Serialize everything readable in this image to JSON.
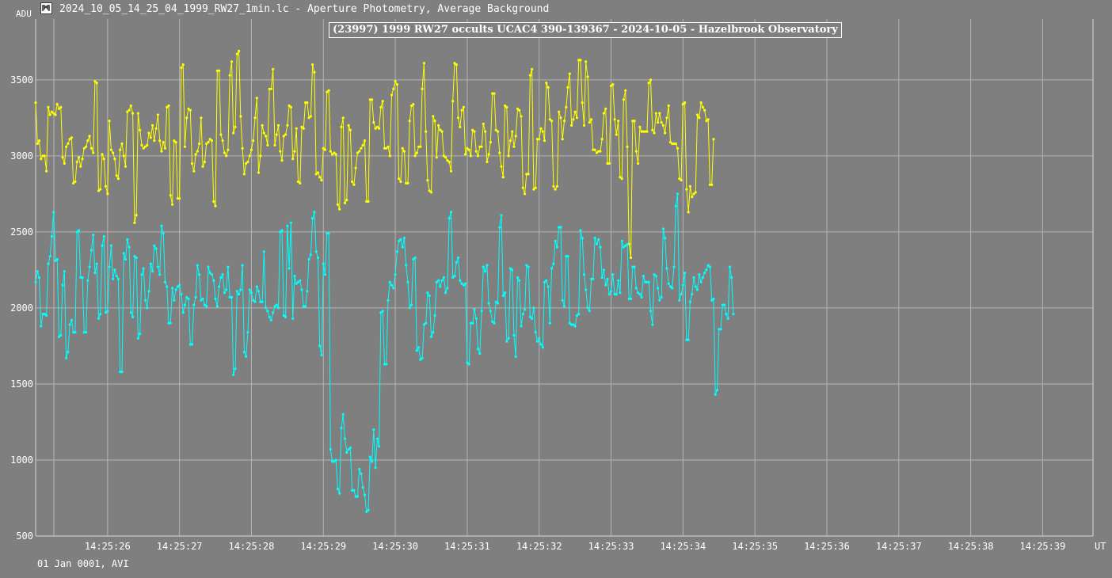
{
  "window": {
    "title": "2024_10_05_14_25_04_1999_RW27_1min.lc - Aperture Photometry, Average Background",
    "icon": "lightcurve-app-icon"
  },
  "footer": {
    "date_text": "01 Jan 0001, AVI"
  },
  "colors": {
    "background": "#7f7f7f",
    "grid": "#b4b4b4",
    "comparison_series": "#ffff00",
    "target_series": "#00ffff"
  },
  "chart_data": {
    "type": "line",
    "title": "(23997) 1999 RW27 occults UCAC4 390-139367 - 2024-10-05 - Hazelbrook Observatory",
    "ylabel": "ADU",
    "xlabel": "UT",
    "ylim": [
      500,
      3900
    ],
    "xlim": [
      0,
      147
    ],
    "yticks": [
      500,
      1000,
      1500,
      2000,
      2500,
      3000,
      3500
    ],
    "xticks": [
      {
        "x": 10,
        "label": "14:25:26"
      },
      {
        "x": 20,
        "label": "14:25:27"
      },
      {
        "x": 30,
        "label": "14:25:28"
      },
      {
        "x": 40,
        "label": "14:25:29"
      },
      {
        "x": 50,
        "label": "14:25:30"
      },
      {
        "x": 60,
        "label": "14:25:31"
      },
      {
        "x": 70,
        "label": "14:25:32"
      },
      {
        "x": 80,
        "label": "14:25:33"
      },
      {
        "x": 90,
        "label": "14:25:34"
      },
      {
        "x": 100,
        "label": "14:25:35"
      },
      {
        "x": 110,
        "label": "14:25:36"
      },
      {
        "x": 120,
        "label": "14:25:37"
      },
      {
        "x": 130,
        "label": "14:25:38"
      },
      {
        "x": 140,
        "label": "14:25:39"
      }
    ],
    "grid": true,
    "x_start": 0,
    "x_step": 0.25,
    "series": [
      {
        "color": "#ffff00",
        "values": [
          3350,
          3080,
          3100,
          2980,
          3000,
          3000,
          2900,
          3320,
          3270,
          3290,
          3280,
          3270,
          3340,
          3310,
          3320,
          2990,
          2950,
          3060,
          3080,
          3110,
          3120,
          2820,
          2830,
          2960,
          2990,
          2930,
          2980,
          3050,
          3060,
          3100,
          3130,
          3050,
          3020,
          3490,
          3480,
          2770,
          2780,
          3010,
          2980,
          2800,
          2750,
          3230,
          3040,
          3020,
          2980,
          2870,
          2850,
          3040,
          3080,
          3000,
          2930,
          3290,
          3300,
          3330,
          3280,
          2560,
          2610,
          3280,
          3170,
          3070,
          3050,
          3060,
          3070,
          3150,
          3120,
          3200,
          3100,
          3180,
          3270,
          3100,
          3030,
          3090,
          3050,
          3320,
          3330,
          2740,
          2680,
          3100,
          3090,
          2720,
          2720,
          3580,
          3600,
          3060,
          3250,
          3310,
          3300,
          2950,
          2900,
          3010,
          3030,
          3080,
          3250,
          2930,
          2960,
          3080,
          3090,
          3110,
          3100,
          2700,
          2670,
          3560,
          3560,
          3140,
          3100,
          3020,
          3000,
          3040,
          3530,
          3620,
          3150,
          3190,
          3670,
          3690,
          3260,
          3050,
          2880,
          2950,
          2960,
          3000,
          3040,
          3100,
          3250,
          3380,
          2890,
          3000,
          3200,
          3150,
          3130,
          3070,
          3440,
          3440,
          3570,
          3070,
          3140,
          3200,
          3030,
          2970,
          3130,
          3140,
          3200,
          3330,
          3320,
          2980,
          3030,
          3180,
          2830,
          2820,
          3190,
          3180,
          3350,
          3350,
          3250,
          3260,
          3600,
          3550,
          2880,
          2890,
          2860,
          2840,
          3050,
          3040,
          3420,
          3430,
          3030,
          3010,
          3020,
          3010,
          2680,
          2650,
          3190,
          3250,
          2690,
          2710,
          3200,
          3170,
          2830,
          2810,
          2920,
          3020,
          3030,
          3050,
          3070,
          3100,
          2700,
          2700,
          3370,
          3370,
          3220,
          3180,
          3190,
          3180,
          3320,
          3360,
          3050,
          3050,
          3060,
          3000,
          3400,
          3440,
          3490,
          3470,
          2850,
          2830,
          3050,
          3030,
          2820,
          2820,
          3230,
          3330,
          3340,
          3000,
          3020,
          3060,
          3060,
          3440,
          3610,
          3160,
          2840,
          2770,
          2760,
          3260,
          3230,
          2990,
          3200,
          3170,
          3160,
          3000,
          2990,
          2970,
          2960,
          2900,
          3360,
          3610,
          3600,
          3250,
          3190,
          3300,
          3320,
          3010,
          3050,
          3040,
          3000,
          3170,
          3160,
          3030,
          3000,
          3060,
          3060,
          3210,
          3160,
          2960,
          3010,
          3090,
          3410,
          3410,
          3170,
          3160,
          3020,
          2930,
          2860,
          3330,
          3320,
          3000,
          3100,
          3160,
          3060,
          3130,
          3310,
          3300,
          3260,
          2790,
          2750,
          2880,
          2880,
          3530,
          3570,
          2780,
          2790,
          3110,
          3110,
          3180,
          3160,
          3100,
          3480,
          3450,
          3240,
          3230,
          2800,
          2780,
          2800,
          3290,
          3250,
          3110,
          3230,
          3320,
          3450,
          3540,
          3200,
          3240,
          3290,
          3250,
          3630,
          3630,
          3350,
          3200,
          3620,
          3520,
          3220,
          3240,
          3040,
          3040,
          3020,
          3030,
          3030,
          3110,
          3280,
          3310,
          2950,
          2950,
          3460,
          3470,
          3240,
          3140,
          3230,
          2860,
          2850,
          3370,
          3430,
          3060,
          2420,
          2330,
          3230,
          3230,
          3030,
          2950,
          3190,
          3160,
          3160,
          3160,
          3160,
          3480,
          3500,
          3170,
          3150,
          3280,
          3220,
          3280,
          3220,
          3200,
          3150,
          3250,
          3330,
          3090,
          3080,
          3080,
          3080,
          3050,
          2850,
          2840,
          3340,
          3350,
          2780,
          2630,
          2800,
          2730,
          2750,
          2760,
          3270,
          3250,
          3350,
          3320,
          3300,
          3230,
          3240,
          2810,
          2810,
          3110
        ]
      },
      {
        "color": "#00ffff",
        "values": [
          2170,
          2240,
          2200,
          1880,
          1960,
          1960,
          1950,
          2290,
          2340,
          2470,
          2630,
          2310,
          2320,
          1810,
          1820,
          2150,
          2240,
          1670,
          1710,
          1890,
          1920,
          1840,
          1840,
          2500,
          2510,
          2200,
          2200,
          1840,
          1840,
          2180,
          2270,
          2380,
          2480,
          2230,
          2290,
          1930,
          1960,
          2410,
          2470,
          1970,
          1980,
          2270,
          2410,
          2190,
          2250,
          2210,
          2190,
          1580,
          1580,
          2360,
          2320,
          2450,
          2400,
          1970,
          1940,
          2340,
          2330,
          1800,
          1830,
          2220,
          2260,
          2050,
          2000,
          2110,
          2290,
          2240,
          2410,
          2390,
          2270,
          2220,
          2540,
          2490,
          2170,
          2140,
          1900,
          1900,
          2130,
          2050,
          2120,
          2140,
          2150,
          2090,
          1970,
          2020,
          2070,
          2060,
          1760,
          1760,
          2020,
          2070,
          2280,
          2220,
          2050,
          2060,
          2020,
          2010,
          2270,
          2230,
          2220,
          2180,
          2060,
          2010,
          2140,
          2200,
          2220,
          2100,
          2120,
          2270,
          2070,
          2070,
          1560,
          1600,
          2110,
          2090,
          2120,
          2280,
          1710,
          1680,
          1840,
          2120,
          2100,
          2050,
          2040,
          2140,
          2110,
          2040,
          2040,
          2370,
          2000,
          1980,
          1940,
          1920,
          1970,
          2010,
          2020,
          2000,
          2500,
          2510,
          1950,
          1940,
          2540,
          2260,
          2560,
          1930,
          2210,
          2160,
          2170,
          2180,
          2120,
          2010,
          2010,
          2110,
          2320,
          2350,
          2590,
          2630,
          2370,
          2330,
          1750,
          1690,
          2290,
          2220,
          2490,
          2490,
          1070,
          990,
          990,
          1000,
          810,
          780,
          1210,
          1300,
          1140,
          1050,
          1070,
          1080,
          800,
          800,
          760,
          760,
          940,
          910,
          820,
          770,
          660,
          670,
          1020,
          990,
          1200,
          950,
          1140,
          1090,
          1970,
          1980,
          1630,
          1630,
          2050,
          2170,
          2150,
          2130,
          2220,
          2370,
          2440,
          2450,
          2400,
          2460,
          2280,
          2170,
          2000,
          2020,
          2320,
          2330,
          1720,
          1740,
          1660,
          1670,
          1890,
          1900,
          2100,
          2080,
          1810,
          1840,
          1950,
          2170,
          2180,
          2140,
          2180,
          2200,
          2100,
          2130,
          2590,
          2630,
          2200,
          2210,
          2300,
          2330,
          2180,
          2160,
          2150,
          2160,
          1640,
          1630,
          1900,
          1900,
          1990,
          1930,
          1730,
          1700,
          1980,
          2270,
          2240,
          2280,
          2030,
          1980,
          1910,
          1900,
          2040,
          2030,
          2530,
          2610,
          2080,
          2100,
          1780,
          1800,
          2260,
          2250,
          1820,
          1680,
          2200,
          2180,
          1880,
          1960,
          1990,
          2280,
          2270,
          1940,
          1930,
          2000,
          1840,
          1780,
          1800,
          1760,
          1740,
          2170,
          2180,
          2140,
          1900,
          2260,
          2290,
          2440,
          2400,
          2530,
          2530,
          2050,
          2010,
          2340,
          2340,
          1900,
          1890,
          1890,
          1880,
          1950,
          1960,
          2510,
          2460,
          2220,
          2120,
          2000,
          1980,
          2190,
          2190,
          2460,
          2420,
          2450,
          2400,
          2200,
          2250,
          2150,
          2190,
          2090,
          2110,
          2220,
          2090,
          2090,
          2180,
          2100,
          2440,
          2400,
          2410,
          2420,
          2060,
          2060,
          2270,
          2270,
          2130,
          2100,
          2090,
          2070,
          2210,
          2170,
          2170,
          2170,
          1980,
          1890,
          2220,
          2210,
          2130,
          2050,
          2070,
          2520,
          2460,
          2260,
          2160,
          2140,
          2130,
          2270,
          2670,
          2750,
          2050,
          2090,
          2150,
          2230,
          1790,
          1790,
          2040,
          2090,
          2200,
          2140,
          2120,
          2220,
          2170,
          2200,
          2230,
          2250,
          2280,
          2270,
          2050,
          2060,
          1430,
          1460,
          1860,
          1860,
          2020,
          2020,
          1960,
          1930,
          2270,
          2200,
          1960
        ]
      }
    ]
  }
}
